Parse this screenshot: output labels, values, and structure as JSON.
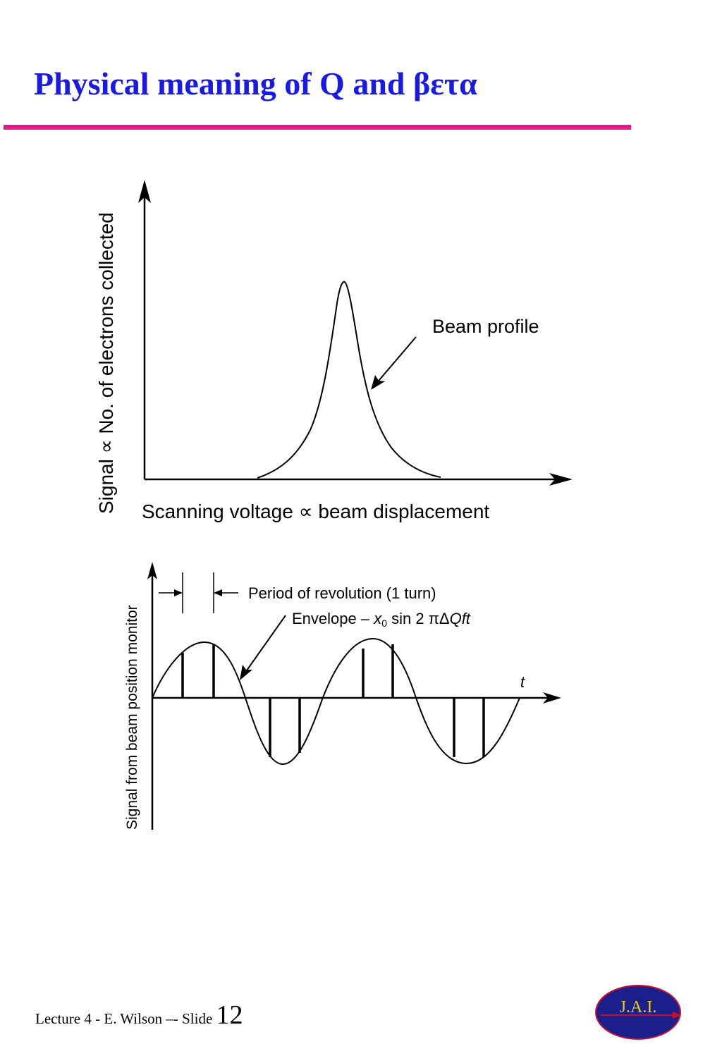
{
  "slide": {
    "title": "Physical meaning of Q and βετα",
    "accent_color": "#1a1ae6",
    "rule_color": "#e8198b"
  },
  "diagram1": {
    "y_axis_label": "Signal ∝ No. of electrons collected",
    "x_axis_label": "Scanning voltage ∝ beam displacement",
    "annotation": "Beam profile"
  },
  "diagram2": {
    "y_axis_label": "Signal from beam position monitor",
    "period_label": "Period of revolution (1 turn)",
    "envelope_label_prefix": "Envelope – ",
    "envelope_label_x": "x",
    "envelope_label_sub": "0",
    "envelope_label_mid": " sin 2 ",
    "envelope_label_pi": "πΔ",
    "envelope_label_end": "Qft",
    "t_label": "t"
  },
  "footer": {
    "lecture": "Lecture 4 - E. Wilson –- Slide ",
    "slide_number": "12"
  },
  "logo": {
    "text": "J.A.I."
  }
}
